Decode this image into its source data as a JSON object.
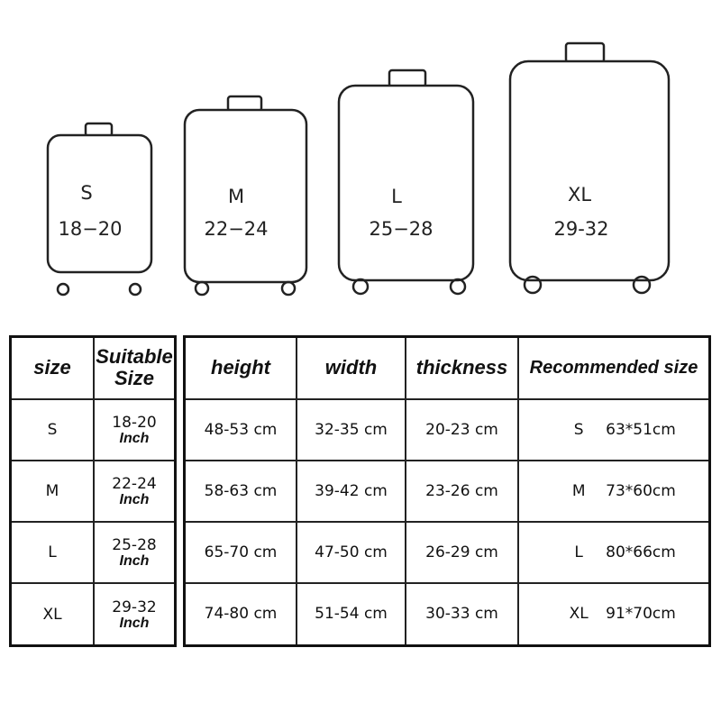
{
  "suitcases": [
    {
      "size": "S",
      "range": "18−20"
    },
    {
      "size": "M",
      "range": "22−24"
    },
    {
      "size": "L",
      "range": "25−28"
    },
    {
      "size": "XL",
      "range": "29-32"
    }
  ],
  "size_table": {
    "headers": [
      "size",
      "Suitable Size"
    ],
    "rows": [
      {
        "size": "S",
        "suitable": "18-20",
        "unit": "Inch"
      },
      {
        "size": "M",
        "suitable": "22-24",
        "unit": "Inch"
      },
      {
        "size": "L",
        "suitable": "25-28",
        "unit": "Inch"
      },
      {
        "size": "XL",
        "suitable": "29-32",
        "unit": "Inch"
      }
    ]
  },
  "dimension_table": {
    "headers": [
      "height",
      "width",
      "thickness",
      "Recommended size"
    ],
    "rows": [
      {
        "height": "48-53 cm",
        "width": "32-35 cm",
        "thickness": "20-23 cm",
        "rec_size": "S",
        "rec_dims": "63*51cm"
      },
      {
        "height": "58-63 cm",
        "width": "39-42 cm",
        "thickness": "23-26 cm",
        "rec_size": "M",
        "rec_dims": "73*60cm"
      },
      {
        "height": "65-70 cm",
        "width": "47-50 cm",
        "thickness": "26-29 cm",
        "rec_size": "L",
        "rec_dims": "80*66cm"
      },
      {
        "height": "74-80 cm",
        "width": "51-54 cm",
        "thickness": "30-33 cm",
        "rec_size": "XL",
        "rec_dims": "91*70cm"
      }
    ]
  }
}
